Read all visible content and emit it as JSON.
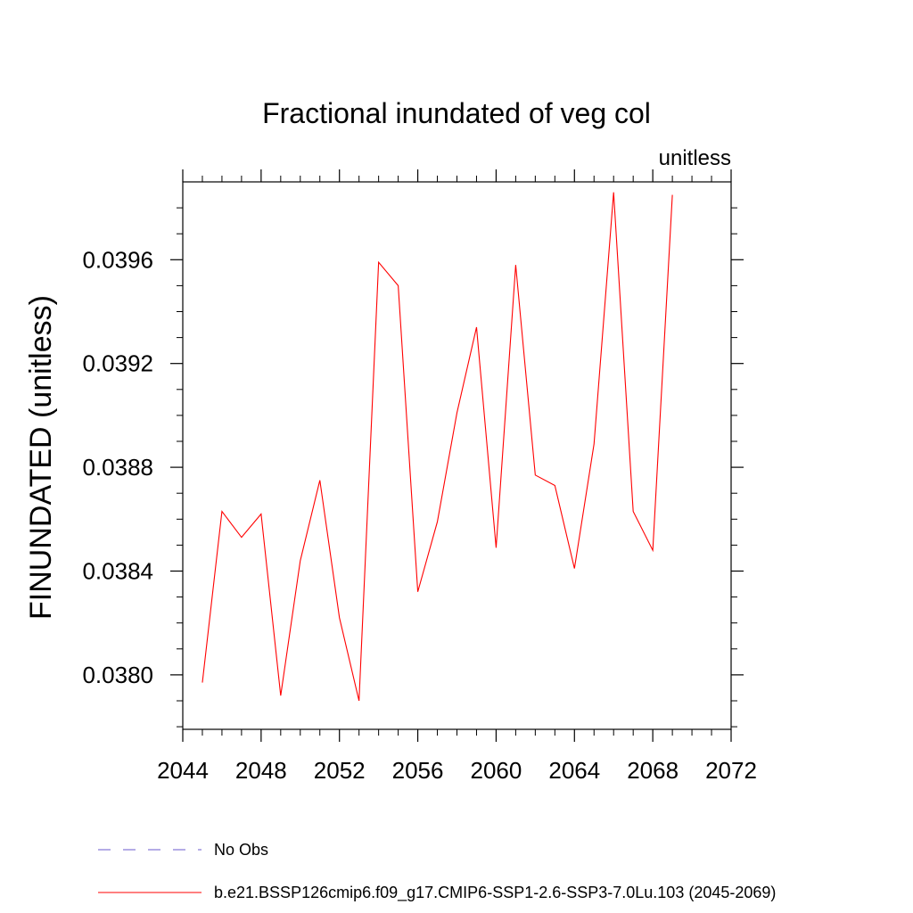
{
  "chart_data": {
    "type": "line",
    "title": "Fractional inundated of veg col",
    "units_label": "unitless",
    "xlabel": "",
    "ylabel": "FINUNDATED  (unitless)",
    "xlim": [
      2044,
      2072
    ],
    "ylim": [
      0.03779,
      0.0399
    ],
    "x_ticks": [
      2044,
      2048,
      2052,
      2056,
      2060,
      2064,
      2068,
      2072
    ],
    "y_ticks": [
      0.038,
      0.0384,
      0.0388,
      0.0392,
      0.0396
    ],
    "y_tick_labels": [
      "0.0380",
      "0.0384",
      "0.0388",
      "0.0392",
      "0.0396"
    ],
    "grid": false,
    "legend_position": "bottom",
    "series": [
      {
        "name": "No Obs",
        "color": "#6a5acd",
        "dash": "dashed",
        "x": [],
        "values": []
      },
      {
        "name": "b.e21.BSSP126cmip6.f09_g17.CMIP6-SSP1-2.6-SSP3-7.0Lu.103 (2045-2069)",
        "color": "#ff0000",
        "dash": "solid",
        "x": [
          2045,
          2046,
          2047,
          2048,
          2049,
          2050,
          2051,
          2052,
          2053,
          2054,
          2055,
          2056,
          2057,
          2058,
          2059,
          2060,
          2061,
          2062,
          2063,
          2064,
          2065,
          2066,
          2067,
          2068,
          2069
        ],
        "values": [
          0.03797,
          0.03863,
          0.03853,
          0.03862,
          0.03792,
          0.03844,
          0.03875,
          0.03822,
          0.0379,
          0.03959,
          0.0395,
          0.03832,
          0.03859,
          0.03901,
          0.03934,
          0.03849,
          0.03958,
          0.03877,
          0.03873,
          0.03841,
          0.03889,
          0.03986,
          0.03863,
          0.03848,
          0.03985
        ]
      }
    ]
  }
}
